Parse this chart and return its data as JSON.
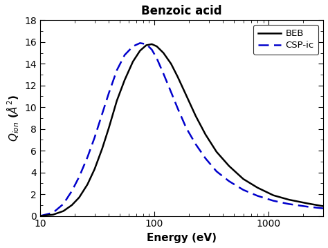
{
  "title": "Benzoic acid",
  "xlabel": "Energy (eV)",
  "xmin": 10,
  "xmax": 3000,
  "ymin": 0,
  "ymax": 18,
  "yticks": [
    0,
    2,
    4,
    6,
    8,
    10,
    12,
    14,
    16,
    18
  ],
  "xticks": [
    10,
    100,
    1000
  ],
  "xtick_labels": [
    "10",
    "100",
    "1000"
  ],
  "legend_beb": "BEB",
  "legend_csp": "CSP-ic",
  "beb_color": "#000000",
  "csp_color": "#0000cc",
  "background_color": "#ffffff",
  "beb_x": [
    10,
    13,
    16,
    19,
    22,
    26,
    30,
    35,
    40,
    47,
    55,
    65,
    75,
    85,
    95,
    105,
    120,
    140,
    160,
    190,
    230,
    280,
    350,
    450,
    600,
    800,
    1100,
    1500,
    2200,
    3000
  ],
  "beb_y": [
    0.0,
    0.12,
    0.45,
    1.0,
    1.7,
    2.9,
    4.3,
    6.2,
    8.1,
    10.6,
    12.5,
    14.2,
    15.2,
    15.7,
    15.8,
    15.6,
    15.0,
    14.0,
    12.8,
    11.1,
    9.2,
    7.5,
    5.9,
    4.6,
    3.4,
    2.6,
    1.9,
    1.5,
    1.15,
    0.9
  ],
  "csp_x": [
    10,
    13,
    16,
    19,
    22,
    26,
    30,
    35,
    40,
    47,
    55,
    65,
    75,
    85,
    95,
    105,
    120,
    140,
    160,
    190,
    230,
    280,
    350,
    450,
    600,
    800,
    1100,
    1500,
    2200,
    3000
  ],
  "csp_y": [
    0.0,
    0.3,
    1.1,
    2.3,
    3.6,
    5.4,
    7.2,
    9.4,
    11.3,
    13.4,
    14.8,
    15.6,
    15.9,
    15.8,
    15.3,
    14.5,
    13.1,
    11.4,
    9.9,
    8.1,
    6.6,
    5.3,
    4.1,
    3.2,
    2.4,
    1.85,
    1.4,
    1.1,
    0.85,
    0.7
  ]
}
